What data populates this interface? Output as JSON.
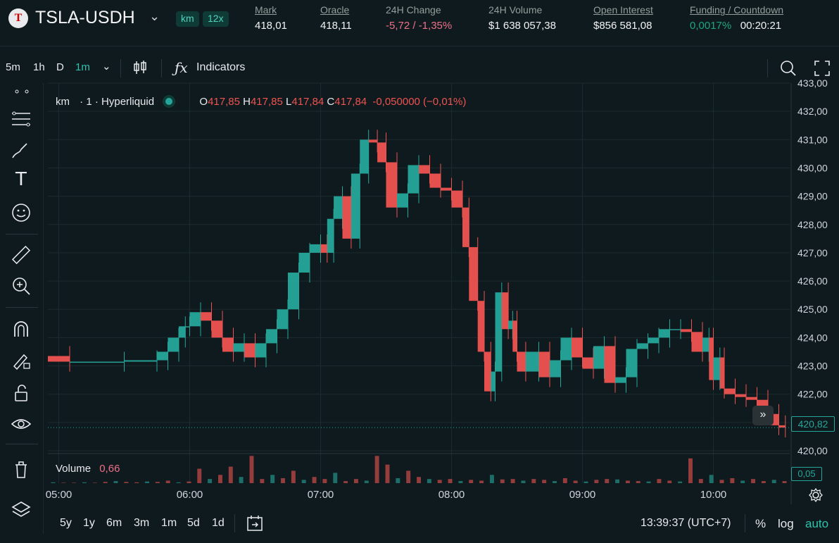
{
  "header": {
    "pair": "TSLA-USDH",
    "tags": [
      "km",
      "12x"
    ],
    "stats": [
      {
        "label": "Mark",
        "value": "418,01",
        "underline": true,
        "color": ""
      },
      {
        "label": "Oracle",
        "value": "418,11",
        "underline": true,
        "color": ""
      },
      {
        "label": "24H Change",
        "value": "-5,72 / -1,35%",
        "underline": false,
        "color": "red"
      },
      {
        "label": "24H Volume",
        "value": "$1 638 057,38",
        "underline": false,
        "color": ""
      },
      {
        "label": "Open Interest",
        "value": "$856 581,08",
        "underline": true,
        "color": ""
      },
      {
        "label": "Funding / Countdown",
        "value_a": "0,0017%",
        "value_b": "00:20:21",
        "underline": true
      }
    ]
  },
  "toolbar": {
    "timeframes": [
      "5m",
      "1h",
      "D",
      "1m"
    ],
    "active_timeframe": "1m",
    "indicators_label": "Indicators"
  },
  "legend": {
    "symbol": "km",
    "interval": "· 1 ·",
    "source": "Hyperliquid",
    "o": "417,85",
    "h": "417,85",
    "l": "417,84",
    "c": "417,84",
    "change": "-0,050000 (−0,01%)"
  },
  "volume_legend": {
    "label": "Volume",
    "value": "0,66"
  },
  "last_price_tag": "420,82",
  "volume_tag": "0,05",
  "bottom": {
    "ranges": [
      "5y",
      "1y",
      "6m",
      "3m",
      "1m",
      "5d",
      "1d"
    ],
    "clock": "13:39:37 (UTC+7)",
    "percent": "%",
    "log": "log",
    "auto": "auto"
  },
  "colors": {
    "up": "#26a69a",
    "down": "#ef5350",
    "accent": "#2fc3ad",
    "bg": "#0f1a1e",
    "grid": "#1b2a2f"
  },
  "chart_data": {
    "type": "candlestick",
    "title": "",
    "xlabel": "",
    "ylabel": "",
    "y_axis_ticks": [
      "420,00",
      "421,00",
      "422,00",
      "423,00",
      "424,00",
      "425,00",
      "426,00",
      "427,00",
      "428,00",
      "429,00",
      "430,00",
      "431,00",
      "432,00",
      "433,00"
    ],
    "ylim": [
      420,
      433
    ],
    "x_axis_ticks": [
      "05:00",
      "06:00",
      "07:00",
      "08:00",
      "09:00",
      "10:00"
    ],
    "xlim": [
      "04:55",
      "10:35"
    ],
    "grid": true,
    "series": [
      {
        "name": "price",
        "points": [
          [
            "04:55",
            423.35
          ],
          [
            "05:05",
            423.15
          ],
          [
            "05:30",
            423.15
          ],
          [
            "05:45",
            423.2
          ],
          [
            "05:50",
            423.5
          ],
          [
            "05:55",
            424.0
          ],
          [
            "05:58",
            424.4
          ],
          [
            "06:00",
            424.4
          ],
          [
            "06:05",
            424.9
          ],
          [
            "06:10",
            424.6
          ],
          [
            "06:15",
            424.0
          ],
          [
            "06:20",
            423.5
          ],
          [
            "06:25",
            423.8
          ],
          [
            "06:30",
            423.3
          ],
          [
            "06:35",
            423.8
          ],
          [
            "06:40",
            424.3
          ],
          [
            "06:45",
            425.0
          ],
          [
            "06:50",
            426.3
          ],
          [
            "06:55",
            427.0
          ],
          [
            "07:00",
            427.3
          ],
          [
            "07:03",
            427.0
          ],
          [
            "07:06",
            428.2
          ],
          [
            "07:10",
            429.0
          ],
          [
            "07:14",
            427.5
          ],
          [
            "07:18",
            429.8
          ],
          [
            "07:22",
            431.0
          ],
          [
            "07:26",
            430.9
          ],
          [
            "07:30",
            430.2
          ],
          [
            "07:35",
            428.6
          ],
          [
            "07:40",
            429.1
          ],
          [
            "07:45",
            430.1
          ],
          [
            "07:50",
            429.8
          ],
          [
            "07:55",
            429.3
          ],
          [
            "08:00",
            429.2
          ],
          [
            "08:05",
            428.6
          ],
          [
            "08:08",
            427.2
          ],
          [
            "08:12",
            425.3
          ],
          [
            "08:15",
            423.5
          ],
          [
            "08:18",
            422.1
          ],
          [
            "08:20",
            422.8
          ],
          [
            "08:23",
            425.6
          ],
          [
            "08:26",
            424.3
          ],
          [
            "08:28",
            424.6
          ],
          [
            "08:30",
            423.5
          ],
          [
            "08:34",
            422.8
          ],
          [
            "08:40",
            423.5
          ],
          [
            "08:45",
            422.6
          ],
          [
            "08:50",
            423.2
          ],
          [
            "08:55",
            424.0
          ],
          [
            "09:00",
            423.3
          ],
          [
            "09:05",
            422.9
          ],
          [
            "09:10",
            423.7
          ],
          [
            "09:15",
            422.4
          ],
          [
            "09:20",
            422.6
          ],
          [
            "09:25",
            423.6
          ],
          [
            "09:30",
            423.8
          ],
          [
            "09:35",
            424.0
          ],
          [
            "09:40",
            424.3
          ],
          [
            "09:45",
            424.3
          ],
          [
            "09:50",
            424.2
          ],
          [
            "09:55",
            423.5
          ],
          [
            "09:58",
            424.0
          ],
          [
            "10:00",
            422.5
          ],
          [
            "10:03",
            423.3
          ],
          [
            "10:05",
            422.2
          ],
          [
            "10:10",
            422.0
          ],
          [
            "10:15",
            421.9
          ],
          [
            "10:20",
            421.8
          ],
          [
            "10:25",
            421.3
          ],
          [
            "10:30",
            420.9
          ],
          [
            "10:33",
            420.82
          ]
        ]
      },
      {
        "name": "Volume",
        "values": [
          0.02,
          0.01,
          0.01,
          0.02,
          0.01,
          0.03,
          0.05,
          0.03,
          0.02,
          0.04,
          0.03,
          0.06,
          0.02,
          0.04,
          0.35,
          0.1,
          0.2,
          0.4,
          0.15,
          0.66,
          0.1,
          0.2,
          0.12,
          0.3,
          0.08,
          0.15,
          0.1,
          0.25,
          0.05,
          0.1,
          0.06,
          0.66,
          0.45,
          0.12,
          0.3,
          0.15,
          0.1,
          0.08,
          0.1,
          0.05,
          0.08,
          0.06,
          0.2,
          0.09,
          0.1,
          0.06,
          0.1,
          0.08,
          0.05,
          0.12,
          0.06,
          0.04,
          0.08,
          0.1,
          0.09,
          0.06,
          0.05,
          0.04,
          0.1,
          0.06,
          0.04,
          0.6,
          0.1,
          0.2,
          0.08,
          0.12,
          0.06,
          0.1,
          0.05,
          0.08,
          0.05
        ]
      }
    ]
  }
}
